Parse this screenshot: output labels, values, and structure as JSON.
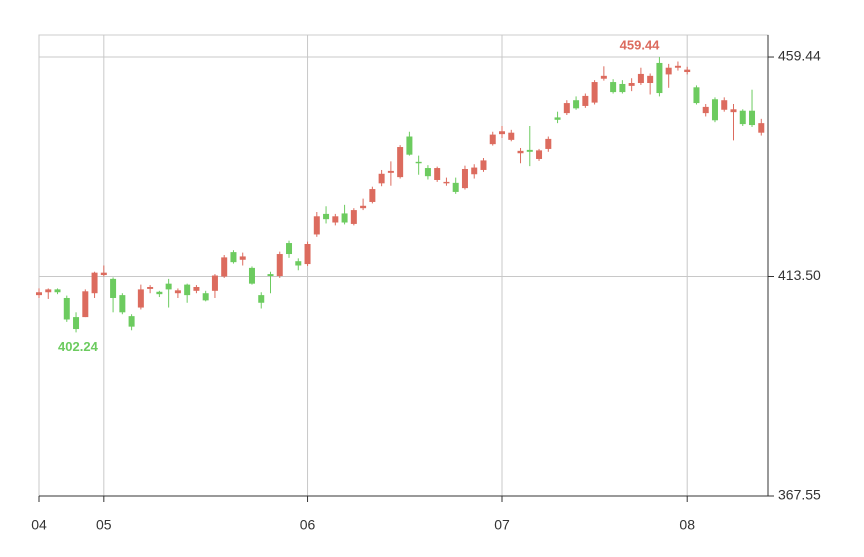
{
  "chart_data": {
    "type": "candlestick",
    "categories": [
      "04",
      null,
      null,
      null,
      null,
      null,
      null,
      "05",
      null,
      null,
      null,
      null,
      null,
      null,
      null,
      null,
      null,
      null,
      null,
      null,
      null,
      null,
      null,
      null,
      null,
      null,
      null,
      null,
      null,
      "06",
      null,
      null,
      null,
      null,
      null,
      null,
      null,
      null,
      null,
      null,
      null,
      null,
      null,
      null,
      null,
      null,
      null,
      null,
      null,
      null,
      "07",
      null,
      null,
      null,
      null,
      null,
      null,
      null,
      null,
      null,
      null,
      null,
      null,
      null,
      null,
      null,
      null,
      null,
      null,
      null,
      "08",
      null,
      null,
      null,
      null,
      null,
      null,
      null,
      null
    ],
    "series": [
      {
        "open": [
          409.6,
          410.2,
          410.8,
          409,
          405,
          405,
          410,
          413.8,
          413,
          409.6,
          405.2,
          407,
          410.9,
          410.3,
          412,
          410,
          411.8,
          410.5,
          410,
          410.5,
          413.5,
          418.6,
          417,
          415.3,
          409.6,
          414,
          413.6,
          420.5,
          416.7,
          416.1,
          422.3,
          426.6,
          424.8,
          426.7,
          424.5,
          427.8,
          429.1,
          433,
          435.2,
          434.3,
          442.8,
          437.5,
          436.2,
          433.7,
          433,
          433.1,
          432,
          434.9,
          435.8,
          441.2,
          443.3,
          442.1,
          439.3,
          440,
          438.1,
          440.2,
          446.8,
          447.7,
          450.4,
          449.2,
          449.9,
          454.9,
          454.2,
          453.8,
          453.4,
          454,
          454,
          458.2,
          455.8,
          457.2,
          456.3,
          453.1,
          447.7,
          450.6,
          448.4,
          447.9,
          448.2,
          448.2,
          443.6
        ],
        "high": [
          411,
          411,
          411,
          409.5,
          406,
          410.8,
          414.5,
          415.8,
          413.3,
          410,
          405.6,
          411.8,
          411.7,
          410.5,
          413,
          411,
          412,
          411.7,
          410.5,
          414,
          418,
          419,
          418.5,
          415.6,
          410.2,
          414.5,
          418.7,
          421,
          417.3,
          420.8,
          427,
          428.2,
          426.6,
          428.5,
          427.8,
          429.8,
          432.3,
          435.8,
          437.6,
          441,
          443.8,
          438.8,
          436.8,
          436.5,
          434.2,
          434.2,
          436.7,
          437,
          438.3,
          443.8,
          445,
          444.2,
          440.4,
          445,
          440.2,
          442.8,
          448,
          450.4,
          451.2,
          451.8,
          454.6,
          457.5,
          454.8,
          454.6,
          455,
          457.2,
          456,
          459.44,
          458,
          458.5,
          457.4,
          453.5,
          449.6,
          451,
          451,
          449.6,
          448.5,
          452.6,
          446.5
        ],
        "low": [
          409,
          408.8,
          409.8,
          404,
          401.8,
          405,
          409,
          413.5,
          406,
          405.6,
          402.24,
          406.6,
          410,
          409.2,
          407,
          409,
          408,
          410,
          408.3,
          409,
          413.2,
          416.2,
          415.8,
          411.8,
          406.8,
          410,
          413.2,
          417.4,
          414.8,
          415.7,
          421.8,
          424.6,
          424.2,
          424.4,
          424.2,
          427.4,
          428.8,
          432.4,
          432.5,
          434,
          438.8,
          434.8,
          433.8,
          433.3,
          432.5,
          430.8,
          431.7,
          434,
          435.4,
          440.9,
          442.5,
          441.8,
          437.2,
          436.6,
          437.7,
          439.6,
          445.6,
          447.3,
          448.4,
          448.8,
          449.5,
          454.5,
          451.8,
          451.8,
          452.3,
          453.6,
          451.6,
          451.2,
          453,
          456.6,
          455.8,
          449.5,
          447,
          445.8,
          448,
          442,
          445,
          444.8,
          443
        ],
        "close": [
          410.2,
          410.8,
          410.2,
          404.5,
          402.5,
          410.4,
          414.3,
          414.3,
          409,
          406,
          403,
          410.8,
          411.3,
          409.8,
          410.8,
          410.6,
          409.6,
          411.3,
          408.5,
          413.7,
          417.5,
          416.5,
          417.7,
          412,
          408,
          413.6,
          418.2,
          418.2,
          415.8,
          420.3,
          426.1,
          425.5,
          426.1,
          424.8,
          427.4,
          428.3,
          431.8,
          435,
          435.6,
          440.6,
          439,
          437.2,
          434.5,
          436.2,
          433.3,
          431.2,
          436,
          436.3,
          437.8,
          443.2,
          443.9,
          443.6,
          439.8,
          439.6,
          439.9,
          442.3,
          446.3,
          449.8,
          448.7,
          451.3,
          454.2,
          455.5,
          452.1,
          452.1,
          454,
          455.9,
          455.5,
          451.9,
          457.2,
          457.6,
          456.8,
          449.8,
          449,
          446.2,
          450.4,
          448.5,
          445.4,
          445.2,
          445.6
        ]
      }
    ],
    "up_color": "#dc6b5e",
    "down_color": "#6ccb5f",
    "high_label": "459.44",
    "low_label": "402.24",
    "ylim": [
      367.55,
      464.05
    ],
    "yticks": [
      367.55,
      {
        "value": 413.5,
        "label": "413.50"
      },
      459.44
    ],
    "grid": true
  }
}
